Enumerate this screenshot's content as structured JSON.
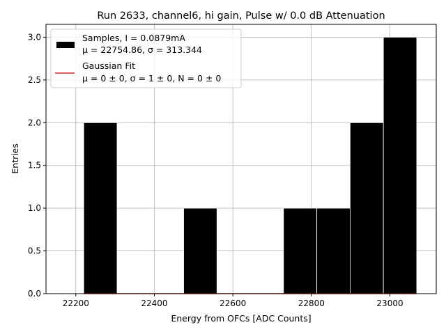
{
  "chart_data": {
    "type": "bar",
    "title": "Run 2633, channel6, hi gain, Pulse w/ 0.0 dB Attenuation",
    "xlabel": "Energy from OFCs [ADC Counts]",
    "ylabel": "Entries",
    "xlim": [
      22124,
      23118
    ],
    "ylim": [
      0,
      3.15
    ],
    "xticks": [
      22200,
      22400,
      22600,
      22800,
      23000
    ],
    "yticks": [
      0.0,
      0.5,
      1.0,
      1.5,
      2.0,
      2.5,
      3.0
    ],
    "xtick_labels": [
      "22200",
      "22400",
      "22600",
      "22800",
      "23000"
    ],
    "ytick_labels": [
      "0.0",
      "0.5",
      "1.0",
      "1.5",
      "2.0",
      "2.5",
      "3.0"
    ],
    "grid": true,
    "legend_position": "top-left",
    "bar_color": "#000000",
    "fit_color": "#d62728",
    "bins": [
      {
        "left": 22220.2,
        "right": 22305.0,
        "count": 2
      },
      {
        "left": 22305.0,
        "right": 22389.8,
        "count": 0
      },
      {
        "left": 22389.8,
        "right": 22474.6,
        "count": 0
      },
      {
        "left": 22474.6,
        "right": 22559.4,
        "count": 1
      },
      {
        "left": 22559.4,
        "right": 22644.2,
        "count": 0
      },
      {
        "left": 22644.2,
        "right": 22729.0,
        "count": 0
      },
      {
        "left": 22729.0,
        "right": 22813.8,
        "count": 1
      },
      {
        "left": 22813.8,
        "right": 22898.6,
        "count": 1
      },
      {
        "left": 22898.6,
        "right": 22983.4,
        "count": 2
      },
      {
        "left": 22983.4,
        "right": 23068.2,
        "count": 3
      }
    ],
    "fit_line": {
      "x": [
        22220.2,
        23068.2
      ],
      "y": [
        0.0,
        0.0
      ]
    },
    "legend": [
      {
        "label": "Samples, I = 0.0879mA",
        "label2": "μ = 22754.86, σ = 313.344"
      },
      {
        "label": "Gaussian Fit",
        "label2": "μ = 0 ± 0, σ = 1 ± 0, N = 0 ± 0"
      }
    ]
  }
}
